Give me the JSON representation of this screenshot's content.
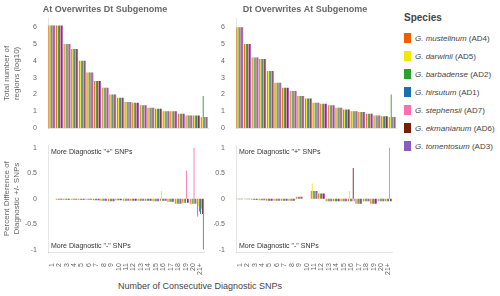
{
  "chart_data": [
    {
      "type": "bar",
      "title": "At Overwrites Dt Subgenome",
      "y_label": "Total number of regions (log10)",
      "categories": [
        "1",
        "2",
        "3",
        "4",
        "5",
        "6",
        "7",
        "8",
        "9",
        "10",
        "11",
        "12",
        "13",
        "14",
        "15",
        "16",
        "17",
        "18",
        "19",
        "20",
        "21+"
      ],
      "series": [
        {
          "name": "G. mustelinum (AD4)",
          "color": "#e8610a",
          "values": [
            6.1,
            6.1,
            5.0,
            4.7,
            4.0,
            3.3,
            2.8,
            2.4,
            2.0,
            1.8,
            1.55,
            1.5,
            1.35,
            1.2,
            1.15,
            1.0,
            1.0,
            0.85,
            0.75,
            0.75,
            0.65
          ]
        },
        {
          "name": "G. darwinii (AD5)",
          "color": "#f0e800",
          "values": [
            6.1,
            6.1,
            5.0,
            4.7,
            4.0,
            3.3,
            2.8,
            2.4,
            2.0,
            1.8,
            1.55,
            1.5,
            1.35,
            1.2,
            1.15,
            1.0,
            1.0,
            0.85,
            0.75,
            0.75,
            0.65
          ]
        },
        {
          "name": "G. barbadense (AD2)",
          "color": "#2ca02c",
          "values": [
            6.1,
            6.1,
            5.0,
            4.7,
            4.0,
            3.3,
            2.8,
            2.4,
            2.0,
            1.8,
            1.55,
            1.5,
            1.35,
            1.2,
            1.15,
            1.0,
            1.0,
            0.85,
            0.75,
            0.75,
            1.9
          ]
        },
        {
          "name": "G. hirsutum (AD1)",
          "color": "#1a6faf",
          "values": [
            6.1,
            6.1,
            5.0,
            4.7,
            4.0,
            3.3,
            2.8,
            2.4,
            2.0,
            1.8,
            1.55,
            1.5,
            1.35,
            1.2,
            1.15,
            1.0,
            1.0,
            0.85,
            0.75,
            0.75,
            0.65
          ]
        },
        {
          "name": "G. stephensii (AD7)",
          "color": "#ff70b0",
          "values": [
            6.1,
            6.1,
            5.0,
            4.7,
            4.0,
            3.3,
            2.8,
            2.4,
            2.0,
            1.8,
            1.55,
            1.5,
            1.35,
            1.2,
            1.15,
            1.0,
            1.0,
            0.85,
            0.75,
            0.75,
            0.65
          ]
        },
        {
          "name": "G. ekmanianum (AD6)",
          "color": "#7a1e0a",
          "values": [
            6.1,
            6.1,
            5.0,
            4.7,
            4.0,
            3.3,
            2.8,
            2.4,
            2.0,
            1.8,
            1.55,
            1.5,
            1.35,
            1.2,
            1.15,
            1.0,
            1.0,
            0.85,
            0.75,
            0.75,
            0.65
          ]
        },
        {
          "name": "G. tomentosum (AD3)",
          "color": "#8b5bbe",
          "values": [
            6.1,
            6.1,
            5.0,
            4.7,
            4.0,
            3.3,
            2.8,
            2.4,
            2.0,
            1.8,
            1.55,
            1.5,
            1.35,
            1.2,
            1.15,
            1.0,
            1.0,
            0.85,
            0.75,
            0.75,
            0.65
          ]
        }
      ],
      "ylim": [
        0,
        6.5
      ],
      "yticks": [
        0,
        1,
        2,
        3,
        4,
        5,
        6
      ],
      "grid": false,
      "tick_labels": "y"
    },
    {
      "type": "bar",
      "title": "Dt Overwrites At Subgenome",
      "categories": [
        "1",
        "2",
        "3",
        "4",
        "5",
        "6",
        "7",
        "8",
        "9",
        "10",
        "11",
        "12",
        "13",
        "14",
        "15",
        "16",
        "17",
        "18",
        "19",
        "20",
        "21+"
      ],
      "series": [
        {
          "name": "G. mustelinum (AD4)",
          "color": "#e8610a",
          "values": [
            6.0,
            5.0,
            4.2,
            4.1,
            3.4,
            2.7,
            2.4,
            2.2,
            1.9,
            1.75,
            1.5,
            1.45,
            1.35,
            1.2,
            1.1,
            1.0,
            0.95,
            0.85,
            0.75,
            0.7,
            0.65
          ]
        },
        {
          "name": "G. darwinii (AD5)",
          "color": "#f0e800",
          "values": [
            6.0,
            5.0,
            4.2,
            4.1,
            3.4,
            2.7,
            2.4,
            2.2,
            1.9,
            1.75,
            1.5,
            1.45,
            1.35,
            1.2,
            1.1,
            1.0,
            0.95,
            0.85,
            0.75,
            0.7,
            0.65
          ]
        },
        {
          "name": "G. barbadense (AD2)",
          "color": "#2ca02c",
          "values": [
            6.0,
            5.0,
            4.2,
            4.1,
            3.4,
            2.7,
            2.4,
            2.2,
            1.9,
            1.75,
            1.5,
            1.45,
            1.35,
            1.2,
            1.1,
            1.0,
            0.95,
            0.85,
            0.75,
            0.7,
            2.0
          ]
        },
        {
          "name": "G. hirsutum (AD1)",
          "color": "#1a6faf",
          "values": [
            6.0,
            5.0,
            4.2,
            4.1,
            3.4,
            2.7,
            2.4,
            2.2,
            1.9,
            1.75,
            1.5,
            1.45,
            1.35,
            1.2,
            1.1,
            1.0,
            0.95,
            0.85,
            0.75,
            0.7,
            0.65
          ]
        },
        {
          "name": "G. stephensii (AD7)",
          "color": "#ff70b0",
          "values": [
            6.0,
            5.0,
            4.2,
            4.1,
            3.4,
            2.7,
            2.4,
            2.2,
            1.9,
            1.75,
            1.5,
            1.45,
            1.35,
            1.2,
            1.1,
            1.0,
            0.95,
            0.85,
            0.75,
            0.7,
            0.65
          ]
        },
        {
          "name": "G. ekmanianum (AD6)",
          "color": "#7a1e0a",
          "values": [
            6.0,
            5.0,
            4.2,
            4.1,
            3.4,
            2.7,
            2.4,
            2.2,
            1.9,
            1.75,
            1.5,
            1.45,
            1.35,
            1.2,
            1.1,
            1.0,
            0.95,
            0.85,
            0.75,
            0.7,
            0.65
          ]
        },
        {
          "name": "G. tomentosum (AD3)",
          "color": "#8b5bbe",
          "values": [
            6.0,
            5.0,
            4.2,
            4.1,
            3.4,
            2.7,
            2.4,
            2.2,
            1.9,
            1.75,
            1.5,
            1.45,
            1.35,
            1.2,
            1.1,
            1.0,
            0.95,
            0.85,
            0.75,
            0.7,
            0.65
          ]
        }
      ],
      "ylim": [
        0,
        6.5
      ],
      "yticks": [
        0,
        1,
        2,
        3,
        4,
        5,
        6
      ],
      "grid": false,
      "tick_labels": "y",
      "legend": "right",
      "legend_title": "Species"
    },
    {
      "type": "bar",
      "y_label": "Percent Difference of Diagnostic +/- SNPs",
      "x_label": "Number of Consecutive Diagnostic SNPs",
      "categories": [
        "1",
        "2",
        "3",
        "4",
        "5",
        "6",
        "7",
        "8",
        "9",
        "10",
        "11",
        "12",
        "13",
        "14",
        "15",
        "16",
        "17",
        "18",
        "19",
        "20",
        "21+"
      ],
      "series": [
        {
          "name": "G. mustelinum (AD4)",
          "color": "#e8610a",
          "values": [
            0.0,
            -0.02,
            -0.02,
            -0.02,
            -0.02,
            -0.02,
            -0.03,
            -0.04,
            -0.05,
            -0.03,
            -0.04,
            -0.04,
            -0.04,
            -0.04,
            -0.05,
            -0.04,
            -0.06,
            -0.1,
            -0.08,
            -0.1,
            -0.35
          ]
        },
        {
          "name": "G. darwinii (AD5)",
          "color": "#f0e800",
          "values": [
            0.0,
            -0.02,
            -0.02,
            -0.02,
            -0.02,
            -0.02,
            -0.03,
            -0.04,
            -0.05,
            -0.03,
            -0.04,
            -0.04,
            -0.04,
            -0.04,
            -0.05,
            0.15,
            -0.06,
            -0.1,
            -0.08,
            -0.12,
            -0.15
          ]
        },
        {
          "name": "G. barbadense (AD2)",
          "color": "#2ca02c",
          "values": [
            0.0,
            -0.02,
            -0.02,
            -0.02,
            -0.02,
            -0.02,
            -0.03,
            -0.04,
            -0.05,
            -0.03,
            -0.04,
            -0.04,
            -0.04,
            -0.04,
            -0.05,
            -0.04,
            -0.06,
            -0.1,
            -0.08,
            -0.1,
            -0.25
          ]
        },
        {
          "name": "G. hirsutum (AD1)",
          "color": "#1a6faf",
          "values": [
            0.0,
            -0.02,
            -0.02,
            -0.02,
            -0.02,
            -0.02,
            -0.03,
            -0.04,
            -0.05,
            -0.03,
            -0.04,
            -0.04,
            -0.04,
            -0.04,
            -0.05,
            -0.04,
            -0.06,
            -0.1,
            -0.08,
            -0.1,
            -0.3
          ]
        },
        {
          "name": "G. stephensii (AD7)",
          "color": "#ff70b0",
          "values": [
            0.0,
            -0.02,
            -0.02,
            -0.02,
            -0.02,
            -0.02,
            -0.03,
            -0.04,
            -0.05,
            -0.03,
            -0.04,
            -0.04,
            -0.04,
            -0.04,
            -0.05,
            -0.04,
            -0.06,
            -0.1,
            0.55,
            1.0,
            -0.2
          ]
        },
        {
          "name": "G. ekmanianum (AD6)",
          "color": "#7a1e0a",
          "values": [
            0.0,
            -0.02,
            -0.02,
            -0.02,
            -0.02,
            -0.02,
            -0.03,
            -0.04,
            -0.05,
            -0.03,
            -0.04,
            -0.04,
            -0.04,
            -0.04,
            -0.05,
            -0.04,
            -0.06,
            -0.1,
            -0.08,
            -0.1,
            -0.3
          ]
        },
        {
          "name": "G. tomentosum (AD3)",
          "color": "#8b5bbe",
          "values": [
            0.0,
            -0.02,
            -0.02,
            -0.02,
            -0.02,
            -0.02,
            -0.03,
            -0.04,
            -0.05,
            -0.03,
            -0.04,
            -0.04,
            -0.04,
            -0.04,
            -0.05,
            -0.04,
            -0.06,
            -0.1,
            -0.08,
            -0.1,
            -1.0
          ]
        }
      ],
      "ylim": [
        -1.05,
        1.05
      ],
      "yticks": [
        -1,
        -0.5,
        0,
        0.5,
        1
      ],
      "grid": false,
      "annotations": [
        "More Diagnostic \"+\" SNPs",
        "More Diagnostic \"-\" SNPs"
      ]
    },
    {
      "type": "bar",
      "categories": [
        "1",
        "2",
        "3",
        "4",
        "5",
        "6",
        "7",
        "8",
        "9",
        "10",
        "11",
        "12",
        "13",
        "14",
        "15",
        "16",
        "17",
        "18",
        "19",
        "20",
        "21+"
      ],
      "series": [
        {
          "name": "G. mustelinum (AD4)",
          "color": "#e8610a",
          "values": [
            -0.01,
            -0.01,
            -0.02,
            -0.03,
            -0.04,
            -0.04,
            -0.04,
            -0.04,
            0.04,
            0.0,
            0.15,
            0.1,
            -0.05,
            -0.05,
            -0.05,
            -0.05,
            -0.1,
            -0.05,
            -0.1,
            -0.05,
            -0.05
          ]
        },
        {
          "name": "G. darwinii (AD5)",
          "color": "#f0e800",
          "values": [
            -0.01,
            -0.01,
            -0.02,
            -0.03,
            -0.04,
            -0.04,
            -0.04,
            -0.04,
            0.04,
            0.0,
            0.3,
            0.1,
            -0.05,
            -0.05,
            -0.05,
            0.15,
            -0.1,
            -0.05,
            -0.1,
            -0.05,
            -0.05
          ]
        },
        {
          "name": "G. barbadense (AD2)",
          "color": "#2ca02c",
          "values": [
            -0.01,
            -0.01,
            -0.02,
            -0.03,
            -0.04,
            -0.04,
            -0.04,
            -0.04,
            0.04,
            0.0,
            0.15,
            0.1,
            -0.05,
            -0.05,
            -0.05,
            -0.05,
            -0.1,
            -0.05,
            -0.1,
            -0.05,
            -0.05
          ]
        },
        {
          "name": "G. hirsutum (AD1)",
          "color": "#1a6faf",
          "values": [
            -0.01,
            -0.01,
            -0.02,
            -0.03,
            -0.04,
            -0.04,
            -0.04,
            -0.04,
            0.04,
            0.0,
            0.15,
            0.1,
            -0.05,
            -0.05,
            -0.05,
            -0.05,
            -0.1,
            -0.05,
            -0.1,
            -0.05,
            -0.05
          ]
        },
        {
          "name": "G. stephensii (AD7)",
          "color": "#ff70b0",
          "values": [
            -0.01,
            -0.01,
            -0.02,
            -0.03,
            -0.04,
            -0.04,
            -0.04,
            -0.04,
            0.04,
            0.0,
            0.15,
            0.1,
            -0.05,
            -0.05,
            -0.05,
            -0.05,
            -0.1,
            -0.05,
            -0.1,
            -0.05,
            1.0
          ]
        },
        {
          "name": "G. ekmanianum (AD6)",
          "color": "#7a1e0a",
          "values": [
            -0.01,
            -0.01,
            -0.02,
            -0.03,
            -0.04,
            -0.04,
            -0.04,
            -0.04,
            0.04,
            0.0,
            0.15,
            0.1,
            -0.05,
            -0.05,
            -0.05,
            0.6,
            -0.1,
            -0.05,
            -0.1,
            -0.05,
            -0.05
          ]
        },
        {
          "name": "G. tomentosum (AD3)",
          "color": "#8b5bbe",
          "values": [
            -0.01,
            -0.01,
            -0.02,
            -0.03,
            -0.04,
            -0.04,
            -0.04,
            -0.04,
            0.04,
            0.0,
            0.15,
            0.1,
            -0.05,
            -0.05,
            -0.05,
            -0.05,
            -0.1,
            -0.05,
            -0.1,
            -0.05,
            -0.05
          ]
        }
      ],
      "ylim": [
        -1.05,
        1.05
      ],
      "yticks": [
        -1,
        -0.5,
        0,
        0.5,
        1
      ],
      "grid": false,
      "annotations": [
        "More Diagnostic \"+\" SNPs",
        "More Diagnostic \"-\" SNPs"
      ]
    }
  ]
}
